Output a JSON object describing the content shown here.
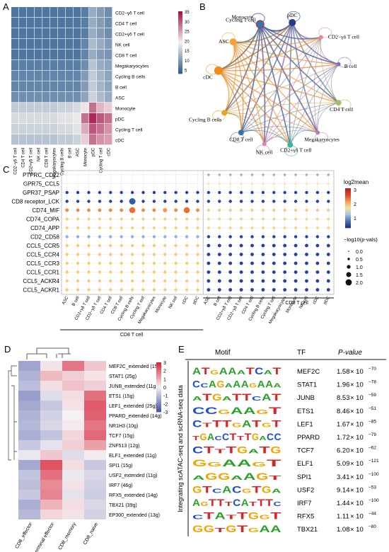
{
  "panels": {
    "A": "A",
    "B": "B",
    "C": "C",
    "D": "D",
    "E": "E"
  },
  "colors": {
    "low": "#2f5f93",
    "mid": "#f5f1ec",
    "high": "#a2124a"
  },
  "chart_data": [
    {
      "type": "heatmap",
      "panel": "A",
      "rows": [
        "CD2−γδ T cell",
        "CD4 T cell",
        "CD2+γδ T cell",
        "NK cell",
        "CD8 T cell",
        "Megakaryocytes",
        "Cycling B cells",
        "B cell",
        "ASC",
        "Monocyte",
        "pDC",
        "Cycling T cell",
        "cDC"
      ],
      "cols": [
        "CD2−γδ T cell",
        "CD4 T cell",
        "CD2+γδ T cell",
        "NK cell",
        "CD8 T cell",
        "Megakaryocytes",
        "Cycling B cells",
        "B cell",
        "ASC",
        "Monocyte",
        "pDC",
        "Cycling T cell",
        "cDC"
      ],
      "colorbar_ticks": [
        "35",
        "30",
        "25",
        "20",
        "15",
        "10",
        "5"
      ],
      "values": [
        [
          3,
          3,
          3,
          3,
          3,
          3,
          3,
          3,
          3,
          4,
          10,
          8,
          6
        ],
        [
          3,
          3,
          3,
          3,
          3,
          3,
          3,
          3,
          3,
          4,
          10,
          8,
          6
        ],
        [
          3,
          3,
          3,
          3,
          3,
          3,
          3,
          3,
          3,
          4,
          10,
          8,
          6
        ],
        [
          3,
          3,
          3,
          3,
          3,
          3,
          3,
          3,
          3,
          5,
          12,
          10,
          8
        ],
        [
          3,
          3,
          3,
          3,
          3,
          3,
          3,
          3,
          3,
          5,
          10,
          8,
          7
        ],
        [
          4,
          4,
          4,
          4,
          4,
          4,
          4,
          4,
          4,
          6,
          13,
          10,
          9
        ],
        [
          5,
          5,
          5,
          5,
          5,
          5,
          5,
          5,
          5,
          8,
          14,
          11,
          9
        ],
        [
          5,
          5,
          5,
          5,
          5,
          5,
          5,
          5,
          5,
          8,
          14,
          11,
          9
        ],
        [
          6,
          6,
          6,
          6,
          6,
          6,
          6,
          6,
          6,
          9,
          15,
          12,
          10
        ],
        [
          14,
          14,
          14,
          14,
          14,
          14,
          15,
          15,
          16,
          20,
          30,
          24,
          22
        ],
        [
          16,
          16,
          16,
          16,
          16,
          16,
          17,
          17,
          18,
          30,
          36,
          32,
          30
        ],
        [
          15,
          15,
          15,
          15,
          15,
          15,
          16,
          16,
          17,
          25,
          32,
          30,
          27
        ],
        [
          13,
          13,
          13,
          13,
          13,
          13,
          14,
          14,
          15,
          22,
          30,
          27,
          26
        ]
      ]
    },
    {
      "type": "network",
      "panel": "B",
      "nodes": [
        {
          "name": "Monocyte",
          "color": "#e21f2f"
        },
        {
          "name": "pDC",
          "color": "#243a8a"
        },
        {
          "name": "CD2−γδ T cell",
          "color": "#e48b9b"
        },
        {
          "name": "B cell",
          "color": "#8a6fbf"
        },
        {
          "name": "CD4 T cell",
          "color": "#9cc06b"
        },
        {
          "name": "Megakaryocytes",
          "color": "#b07fc4"
        },
        {
          "name": "CD2+γδ T cell",
          "color": "#39b59b"
        },
        {
          "name": "NK cell",
          "color": "#e27fb1"
        },
        {
          "name": "CD8 T cell",
          "color": "#3a6ea5"
        },
        {
          "name": "Cycling B cells",
          "color": "#e6a51e"
        },
        {
          "name": "cDC",
          "color": "#f08a1c"
        },
        {
          "name": "ASC",
          "color": "#f2a33a"
        },
        {
          "name": "Cycling T cell",
          "color": "#2c77b4"
        }
      ]
    },
    {
      "type": "scatter",
      "panel": "C",
      "pairs": [
        "PTPRC_CD22",
        "GPR75_CCL5",
        "GPR37_PSAP",
        "CD8 receptor_LCK",
        "CD74_MIF",
        "CD74_COPA",
        "CD74_APP",
        "CD2_CD58",
        "CCL5_CCR5",
        "CCL5_CCR4",
        "CCL5_CCR3",
        "CCL5_CCR1",
        "CCL5_ACKR4",
        "CCL5_ACKR1"
      ],
      "x_left": [
        "ASC",
        "B cell",
        "CD2+γδ T cell",
        "CD2−γδ T cell",
        "CD4 T cell",
        "CD8 T cell",
        "Cycling B cells",
        "Cycling T cell",
        "Megakaryocytes",
        "Monocyte",
        "NK cell",
        "cDC",
        "pDC"
      ],
      "x_right": [
        "ASC",
        "B cell",
        "CD2+γδ T cell",
        "CD2−γδ T cell",
        "CD4 T cell",
        "Cycling B cells",
        "Cycling T cell",
        "Megakaryocytes",
        "Monocyte",
        "NK cell",
        "cDC",
        "pDC"
      ],
      "group_left": "CD8 T cell",
      "group_right": "CD8 T cell",
      "legend_color_title": "log2mean",
      "legend_color_ticks": [
        "3",
        "2",
        "1"
      ],
      "legend_size_title": "−log10(p-vals)",
      "legend_size_ticks": [
        "0.0",
        "0.5",
        "1.0",
        "1.5",
        "2.0"
      ]
    },
    {
      "type": "heatmap",
      "panel": "D",
      "rows": [
        "MEF2C_extended (15g)",
        "STAT1 (25g)",
        "JUNB_extended (11g)",
        "ETS1 (15g)",
        "LEF1_extended (25g)",
        "PPARD_extended (14g)",
        "NR1H3 (10g)",
        "TCF7 (15g)",
        "ZNF513 (12g)",
        "ELF1_extended (11g)",
        "SPI1 (15g)",
        "USF2_extended (11g)",
        "IRF7 (46g)",
        "RFX5_extended (14g)",
        "TBX21 (39g)",
        "EP300_extended (13g)"
      ],
      "cols": [
        "CD8_effector",
        "CD8_terminal effector",
        "CD8_memory",
        "CD8_naive"
      ],
      "colorbar_ticks": [
        "3",
        "2",
        "1",
        "0",
        "-1",
        "-2",
        "-3"
      ],
      "values": [
        [
          -1.5,
          0.2,
          1.8,
          0.6
        ],
        [
          -1.2,
          0.8,
          0.5,
          0.2
        ],
        [
          -1.0,
          0.3,
          0.7,
          0.5
        ],
        [
          -1.6,
          -0.4,
          0.3,
          1.9
        ],
        [
          -1.4,
          -0.8,
          0.2,
          2.2
        ],
        [
          -1.2,
          -0.6,
          0.0,
          2.1
        ],
        [
          -1.1,
          -0.5,
          0.1,
          1.8
        ],
        [
          -1.3,
          -0.9,
          0.4,
          2.0
        ],
        [
          -0.8,
          -0.3,
          0.5,
          1.2
        ],
        [
          -0.2,
          0.6,
          -0.4,
          0.1
        ],
        [
          -1.4,
          2.3,
          0.3,
          -0.8
        ],
        [
          -0.9,
          1.9,
          -0.2,
          -0.5
        ],
        [
          -1.0,
          1.5,
          0.2,
          -0.6
        ],
        [
          -0.8,
          1.6,
          -0.3,
          -0.7
        ],
        [
          -1.3,
          0.9,
          0.3,
          -0.5
        ],
        [
          -1.1,
          0.4,
          0.2,
          -0.6
        ]
      ]
    },
    {
      "type": "table",
      "panel": "E",
      "headers": [
        "Motif",
        "TF",
        "P-value"
      ],
      "side_label": "Integrating scATAC-seq and scRNA-seq data",
      "rows": [
        {
          "tf": "MEF2C",
          "mant": "1.58",
          "exp": "−70"
        },
        {
          "tf": "STAT1",
          "mant": "1.96",
          "exp": "−78"
        },
        {
          "tf": "JUNB",
          "mant": "8.53",
          "exp": "−59"
        },
        {
          "tf": "ETS1",
          "mant": "8.46",
          "exp": "−51"
        },
        {
          "tf": "LEF1",
          "mant": "1.67",
          "exp": "−85"
        },
        {
          "tf": "PPARD",
          "mant": "1.72",
          "exp": "−79"
        },
        {
          "tf": "TCF7",
          "mant": "6.20",
          "exp": "−62"
        },
        {
          "tf": "ELF1",
          "mant": "5.09",
          "exp": "−121"
        },
        {
          "tf": "SPI1",
          "mant": "3.41",
          "exp": "−100"
        },
        {
          "tf": "USF2",
          "mant": "9.14",
          "exp": "−53"
        },
        {
          "tf": "IRF7",
          "mant": "1.44",
          "exp": "−100"
        },
        {
          "tf": "RFX5",
          "mant": "1.11",
          "exp": "−44"
        },
        {
          "tf": "TBX21",
          "mant": "1.08",
          "exp": "−80"
        }
      ],
      "motifs": [
        "ATGAAATCAT",
        "CCAGAAAGAAA",
        "ATGATTCAT",
        "CCGAAGT",
        "CTTTGATGT",
        "TGACCTTTGACC",
        "CTTTGATG",
        "GGAAGT",
        "AGGAAGT",
        "GTCACGTGA",
        "AGTTTCATTTC",
        "CTATTGGT",
        "GGTGTGAA"
      ],
      "motif_colors": {
        "A": "#2ca02c",
        "C": "#1f4fd1",
        "G": "#f0a500",
        "T": "#d62728"
      }
    }
  ]
}
